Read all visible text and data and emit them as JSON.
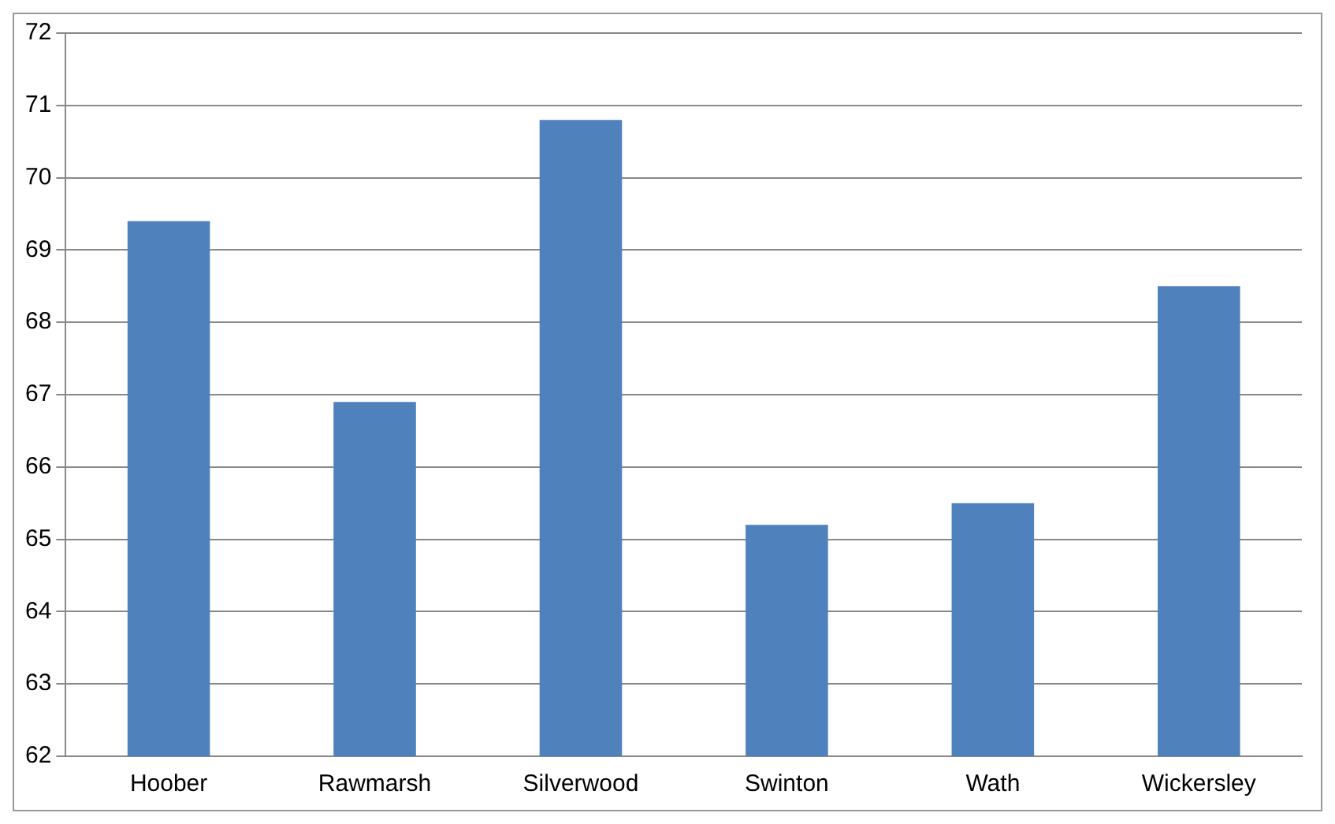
{
  "chart_data": {
    "type": "bar",
    "categories": [
      "Hoober",
      "Rawmarsh",
      "Silverwood",
      "Swinton",
      "Wath",
      "Wickersley"
    ],
    "values": [
      69.4,
      66.9,
      70.8,
      65.2,
      65.5,
      68.5
    ],
    "color": "#4f81bd",
    "ylim": [
      62,
      72
    ],
    "yticks": [
      62,
      63,
      64,
      65,
      66,
      67,
      68,
      69,
      70,
      71,
      72
    ],
    "grid": "y",
    "legend": false
  }
}
